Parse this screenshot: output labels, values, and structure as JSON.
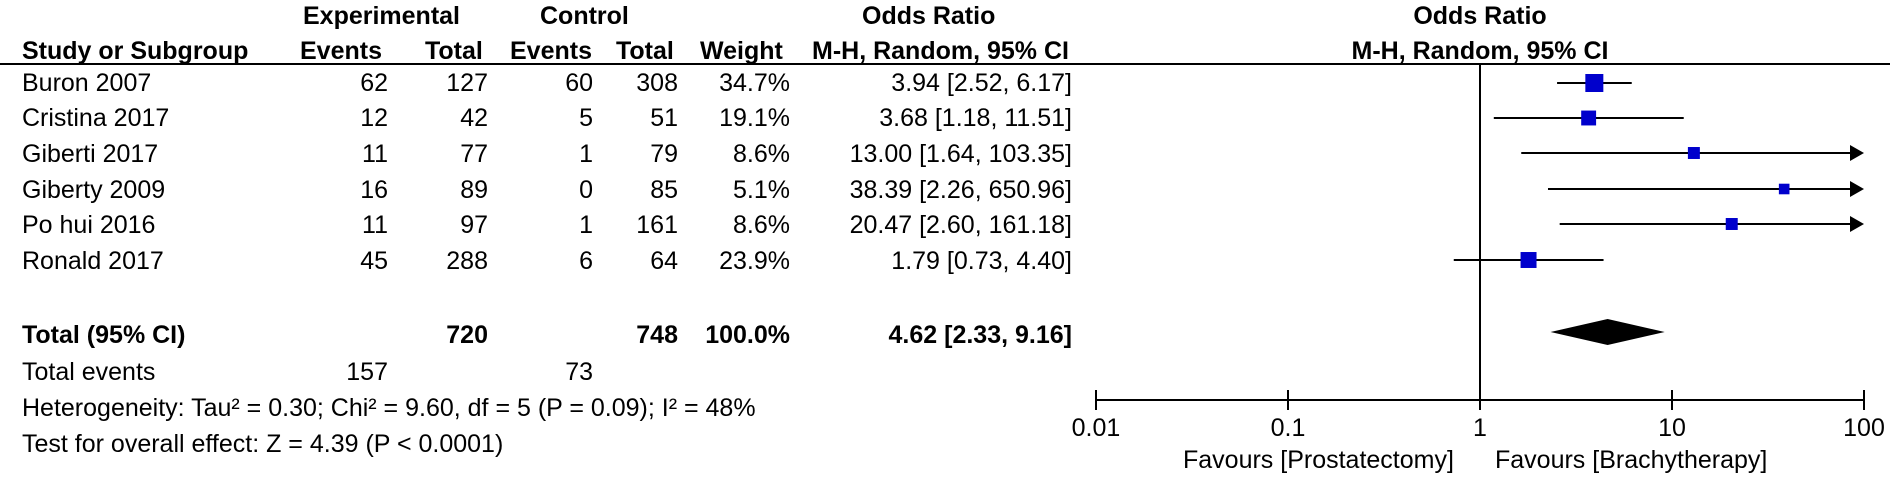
{
  "header": {
    "experimental": "Experimental",
    "control": "Control",
    "odds_ratio": "Odds Ratio",
    "study_col": "Study or Subgroup",
    "events": "Events",
    "total": "Total",
    "weight": "Weight",
    "method": "M-H, Random, 95% CI",
    "plot_title": "Odds Ratio",
    "plot_method": "M-H, Random, 95% CI"
  },
  "studies": [
    {
      "name": "Buron 2007",
      "exp_events": "62",
      "exp_total": "127",
      "ctrl_events": "60",
      "ctrl_total": "308",
      "weight": "34.7%",
      "ci": "3.94 [2.52, 6.17]"
    },
    {
      "name": "Cristina 2017",
      "exp_events": "12",
      "exp_total": "42",
      "ctrl_events": "5",
      "ctrl_total": "51",
      "weight": "19.1%",
      "ci": "3.68 [1.18, 11.51]"
    },
    {
      "name": "Giberti 2017",
      "exp_events": "11",
      "exp_total": "77",
      "ctrl_events": "1",
      "ctrl_total": "79",
      "weight": "8.6%",
      "ci": "13.00 [1.64, 103.35]"
    },
    {
      "name": "Giberty 2009",
      "exp_events": "16",
      "exp_total": "89",
      "ctrl_events": "0",
      "ctrl_total": "85",
      "weight": "5.1%",
      "ci": "38.39 [2.26, 650.96]"
    },
    {
      "name": "Po hui 2016",
      "exp_events": "11",
      "exp_total": "97",
      "ctrl_events": "1",
      "ctrl_total": "161",
      "weight": "8.6%",
      "ci": "20.47 [2.60, 161.18]"
    },
    {
      "name": "Ronald 2017",
      "exp_events": "45",
      "exp_total": "288",
      "ctrl_events": "6",
      "ctrl_total": "64",
      "weight": "23.9%",
      "ci": "1.79 [0.73, 4.40]"
    }
  ],
  "total": {
    "label": "Total (95% CI)",
    "exp_total": "720",
    "ctrl_total": "748",
    "weight": "100.0%",
    "ci": "4.62 [2.33, 9.16]"
  },
  "total_events": {
    "label": "Total events",
    "exp": "157",
    "ctrl": "73"
  },
  "heterogeneity": "Heterogeneity: Tau² = 0.30; Chi² = 9.60, df = 5 (P = 0.09); I² = 48%",
  "overall_effect": "Test for overall effect: Z = 4.39 (P < 0.0001)",
  "axis": {
    "ticks": [
      {
        "value": 0.01,
        "label": "0.01"
      },
      {
        "value": 0.1,
        "label": "0.1"
      },
      {
        "value": 1,
        "label": "1"
      },
      {
        "value": 10,
        "label": "10"
      },
      {
        "value": 100,
        "label": "100"
      }
    ],
    "favours_left": "Favours [Prostatectomy]",
    "favours_right": "Favours [Brachytherapy]"
  },
  "chart_data": {
    "type": "forest",
    "scale": "log",
    "xlim": [
      0.01,
      100
    ],
    "colors": {
      "marker": "#0000cc",
      "diamond": "#000000"
    },
    "studies": [
      {
        "name": "Buron 2007",
        "or": 3.94,
        "lo": 2.52,
        "hi": 6.17,
        "weight": 34.7
      },
      {
        "name": "Cristina 2017",
        "or": 3.68,
        "lo": 1.18,
        "hi": 11.51,
        "weight": 19.1
      },
      {
        "name": "Giberti 2017",
        "or": 13.0,
        "lo": 1.64,
        "hi": 103.35,
        "weight": 8.6
      },
      {
        "name": "Giberty 2009",
        "or": 38.39,
        "lo": 2.26,
        "hi": 650.96,
        "weight": 5.1
      },
      {
        "name": "Po hui 2016",
        "or": 20.47,
        "lo": 2.6,
        "hi": 161.18,
        "weight": 8.6
      },
      {
        "name": "Ronald 2017",
        "or": 1.79,
        "lo": 0.73,
        "hi": 4.4,
        "weight": 23.9
      }
    ],
    "pooled": {
      "or": 4.62,
      "lo": 2.33,
      "hi": 9.16
    }
  }
}
